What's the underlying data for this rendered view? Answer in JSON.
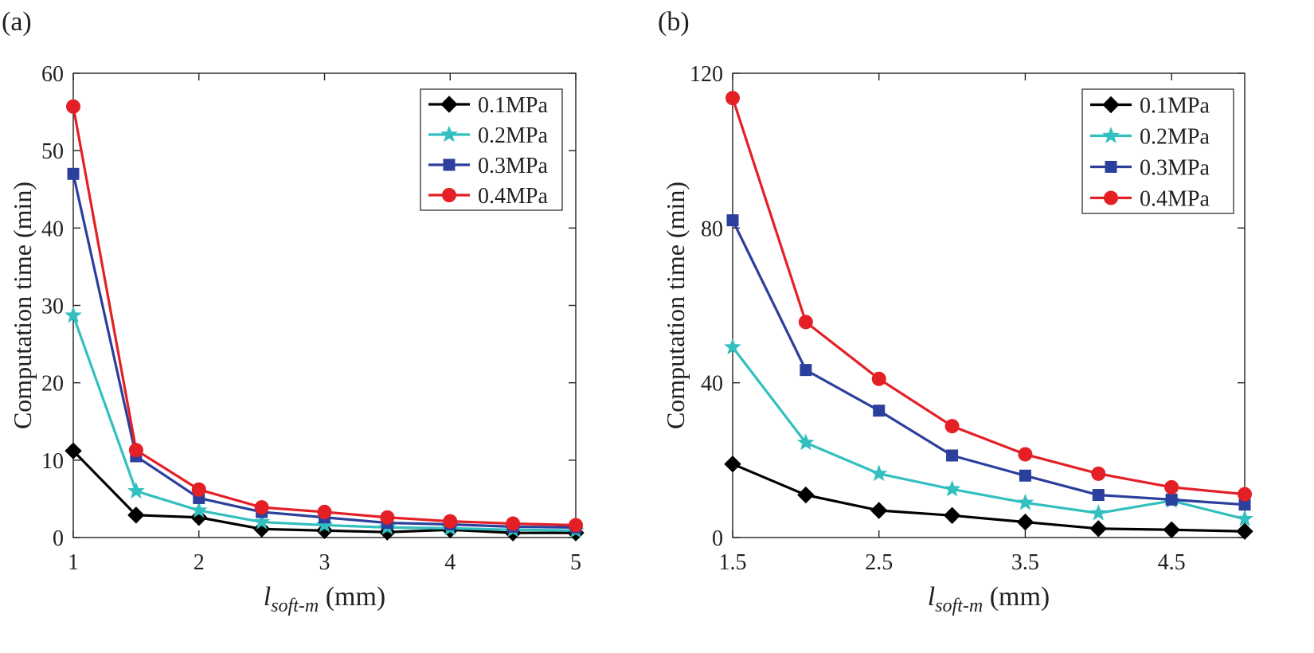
{
  "chart_data": [
    {
      "type": "line",
      "panel_label": "(a)",
      "xlabel_main": "l",
      "xlabel_sub": "soft-m",
      "xlabel_unit": "(mm)",
      "ylabel": "Computation time (min)",
      "xlim": [
        1,
        5
      ],
      "ylim": [
        0,
        60
      ],
      "xticks": [
        1,
        2,
        3,
        4,
        5
      ],
      "xticklabels": [
        "1",
        "2",
        "3",
        "4",
        "5"
      ],
      "yticks": [
        0,
        10,
        20,
        30,
        40,
        50,
        60
      ],
      "yticklabels": [
        "0",
        "10",
        "20",
        "30",
        "40",
        "50",
        "60"
      ],
      "legend_position": "top-right",
      "x": [
        1,
        1.5,
        2,
        2.5,
        3,
        3.5,
        4,
        4.5,
        5
      ],
      "series": [
        {
          "name": "0.1MPa",
          "color": "#000000",
          "marker": "diamond",
          "values": [
            11.2,
            2.9,
            2.6,
            1.1,
            0.9,
            0.7,
            1.0,
            0.6,
            0.6
          ]
        },
        {
          "name": "0.2MPa",
          "color": "#33bfbf",
          "marker": "star",
          "values": [
            28.7,
            6.0,
            3.5,
            2.0,
            1.6,
            1.3,
            1.2,
            1.0,
            0.9
          ]
        },
        {
          "name": "0.3MPa",
          "color": "#2b3f9c",
          "marker": "square",
          "values": [
            47.0,
            10.5,
            5.1,
            3.3,
            2.6,
            1.9,
            1.7,
            1.4,
            1.3
          ]
        },
        {
          "name": "0.4MPa",
          "color": "#e41f26",
          "marker": "circle",
          "values": [
            55.7,
            11.3,
            6.2,
            3.9,
            3.3,
            2.6,
            2.1,
            1.8,
            1.6
          ]
        }
      ]
    },
    {
      "type": "line",
      "panel_label": "(b)",
      "xlabel_main": "l",
      "xlabel_sub": "soft-m",
      "xlabel_unit": "(mm)",
      "ylabel": "Computation time (min)",
      "xlim": [
        1.5,
        5
      ],
      "ylim": [
        0,
        120
      ],
      "xticks": [
        1.5,
        2.5,
        3.5,
        4.5
      ],
      "xticklabels": [
        "1.5",
        "2.5",
        "3.5",
        "4.5"
      ],
      "yticks": [
        0,
        40,
        80,
        120
      ],
      "yticklabels": [
        "0",
        "40",
        "80",
        "120"
      ],
      "legend_position": "top-right",
      "x": [
        1.5,
        2,
        2.5,
        3,
        3.5,
        4,
        4.5,
        5
      ],
      "series": [
        {
          "name": "0.1MPa",
          "color": "#000000",
          "marker": "diamond",
          "values": [
            19.0,
            11.0,
            7.0,
            5.7,
            4.0,
            2.3,
            2.0,
            1.6
          ]
        },
        {
          "name": "0.2MPa",
          "color": "#33bfbf",
          "marker": "star",
          "values": [
            49.2,
            24.5,
            16.5,
            12.5,
            9.0,
            6.3,
            9.5,
            4.8
          ]
        },
        {
          "name": "0.3MPa",
          "color": "#2b3f9c",
          "marker": "square",
          "values": [
            82.0,
            43.3,
            32.8,
            21.2,
            16.0,
            11.0,
            9.8,
            8.5
          ]
        },
        {
          "name": "0.4MPa",
          "color": "#e41f26",
          "marker": "circle",
          "values": [
            113.6,
            55.7,
            41.0,
            28.8,
            21.5,
            16.5,
            13.0,
            11.2
          ]
        }
      ]
    }
  ]
}
